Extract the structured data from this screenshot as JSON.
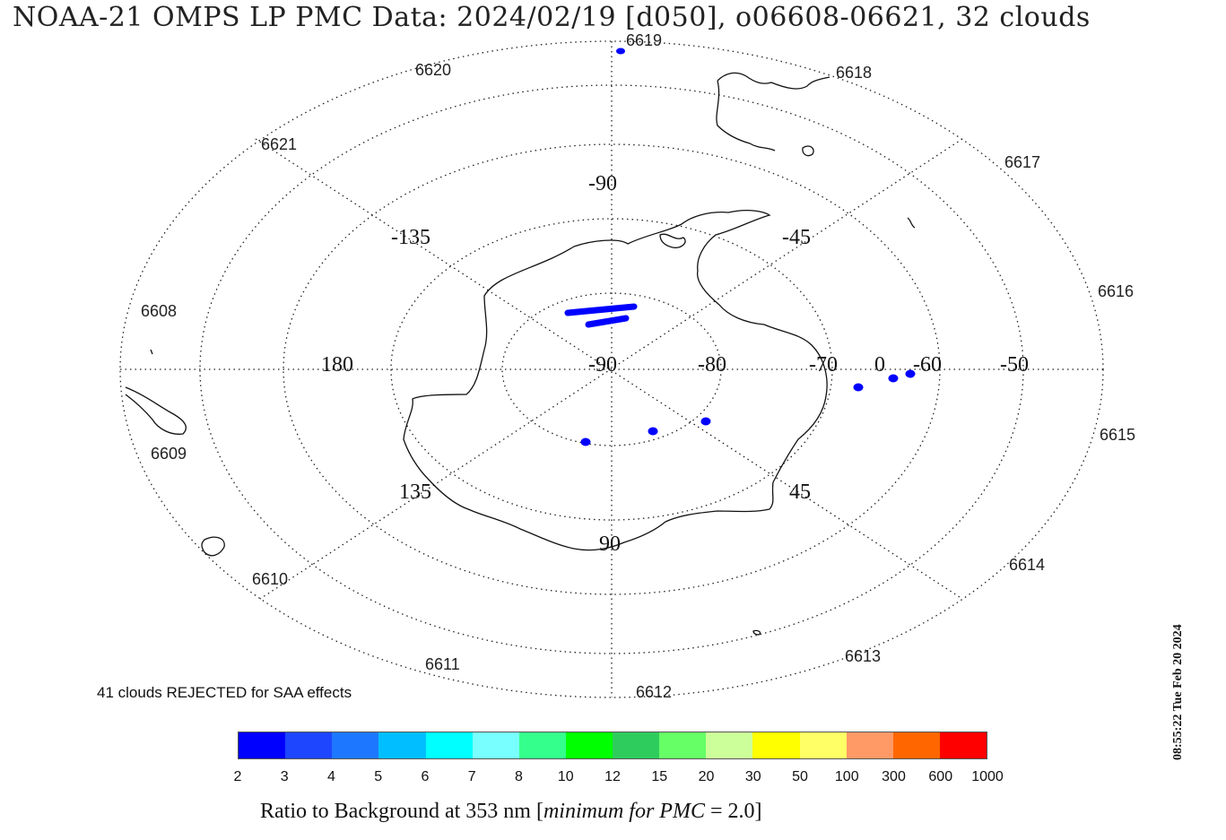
{
  "title": "NOAA-21 OMPS LP PMC Data: 2024/02/19 [d050], o06608-06621, 32 clouds",
  "reject_note": "41 clouds REJECTED for SAA effects",
  "timestamp": "08:55:22 Tue Feb 20 2024",
  "latitude_labels": [
    "-90",
    "-80",
    "-70",
    "-60",
    "-50"
  ],
  "longitude_labels": [
    "-90",
    "-45",
    "0",
    "45",
    "90",
    "135",
    "180",
    "-135"
  ],
  "orbit_labels": [
    "6608",
    "6609",
    "6610",
    "6611",
    "6612",
    "6613",
    "6614",
    "6615",
    "6616",
    "6617",
    "6618",
    "6619",
    "6620",
    "6621"
  ],
  "colorbar": {
    "colors": [
      "#0000ff",
      "#1e46ff",
      "#1e78ff",
      "#00beff",
      "#00ffff",
      "#78ffff",
      "#34ff8c",
      "#00ff00",
      "#2ecc5c",
      "#66ff66",
      "#ccff99",
      "#ffff00",
      "#ffff66",
      "#ff9966",
      "#ff6600",
      "#ff0000"
    ],
    "ticks": [
      "2",
      "3",
      "4",
      "5",
      "6",
      "7",
      "8",
      "10",
      "12",
      "15",
      "20",
      "30",
      "50",
      "100",
      "300",
      "600",
      "1000"
    ],
    "label_prefix": "Ratio to Background at 353 nm [",
    "label_italic": "minimum for PMC",
    "label_suffix": " = 2.0]"
  },
  "cloud_color": "#0000ff"
}
